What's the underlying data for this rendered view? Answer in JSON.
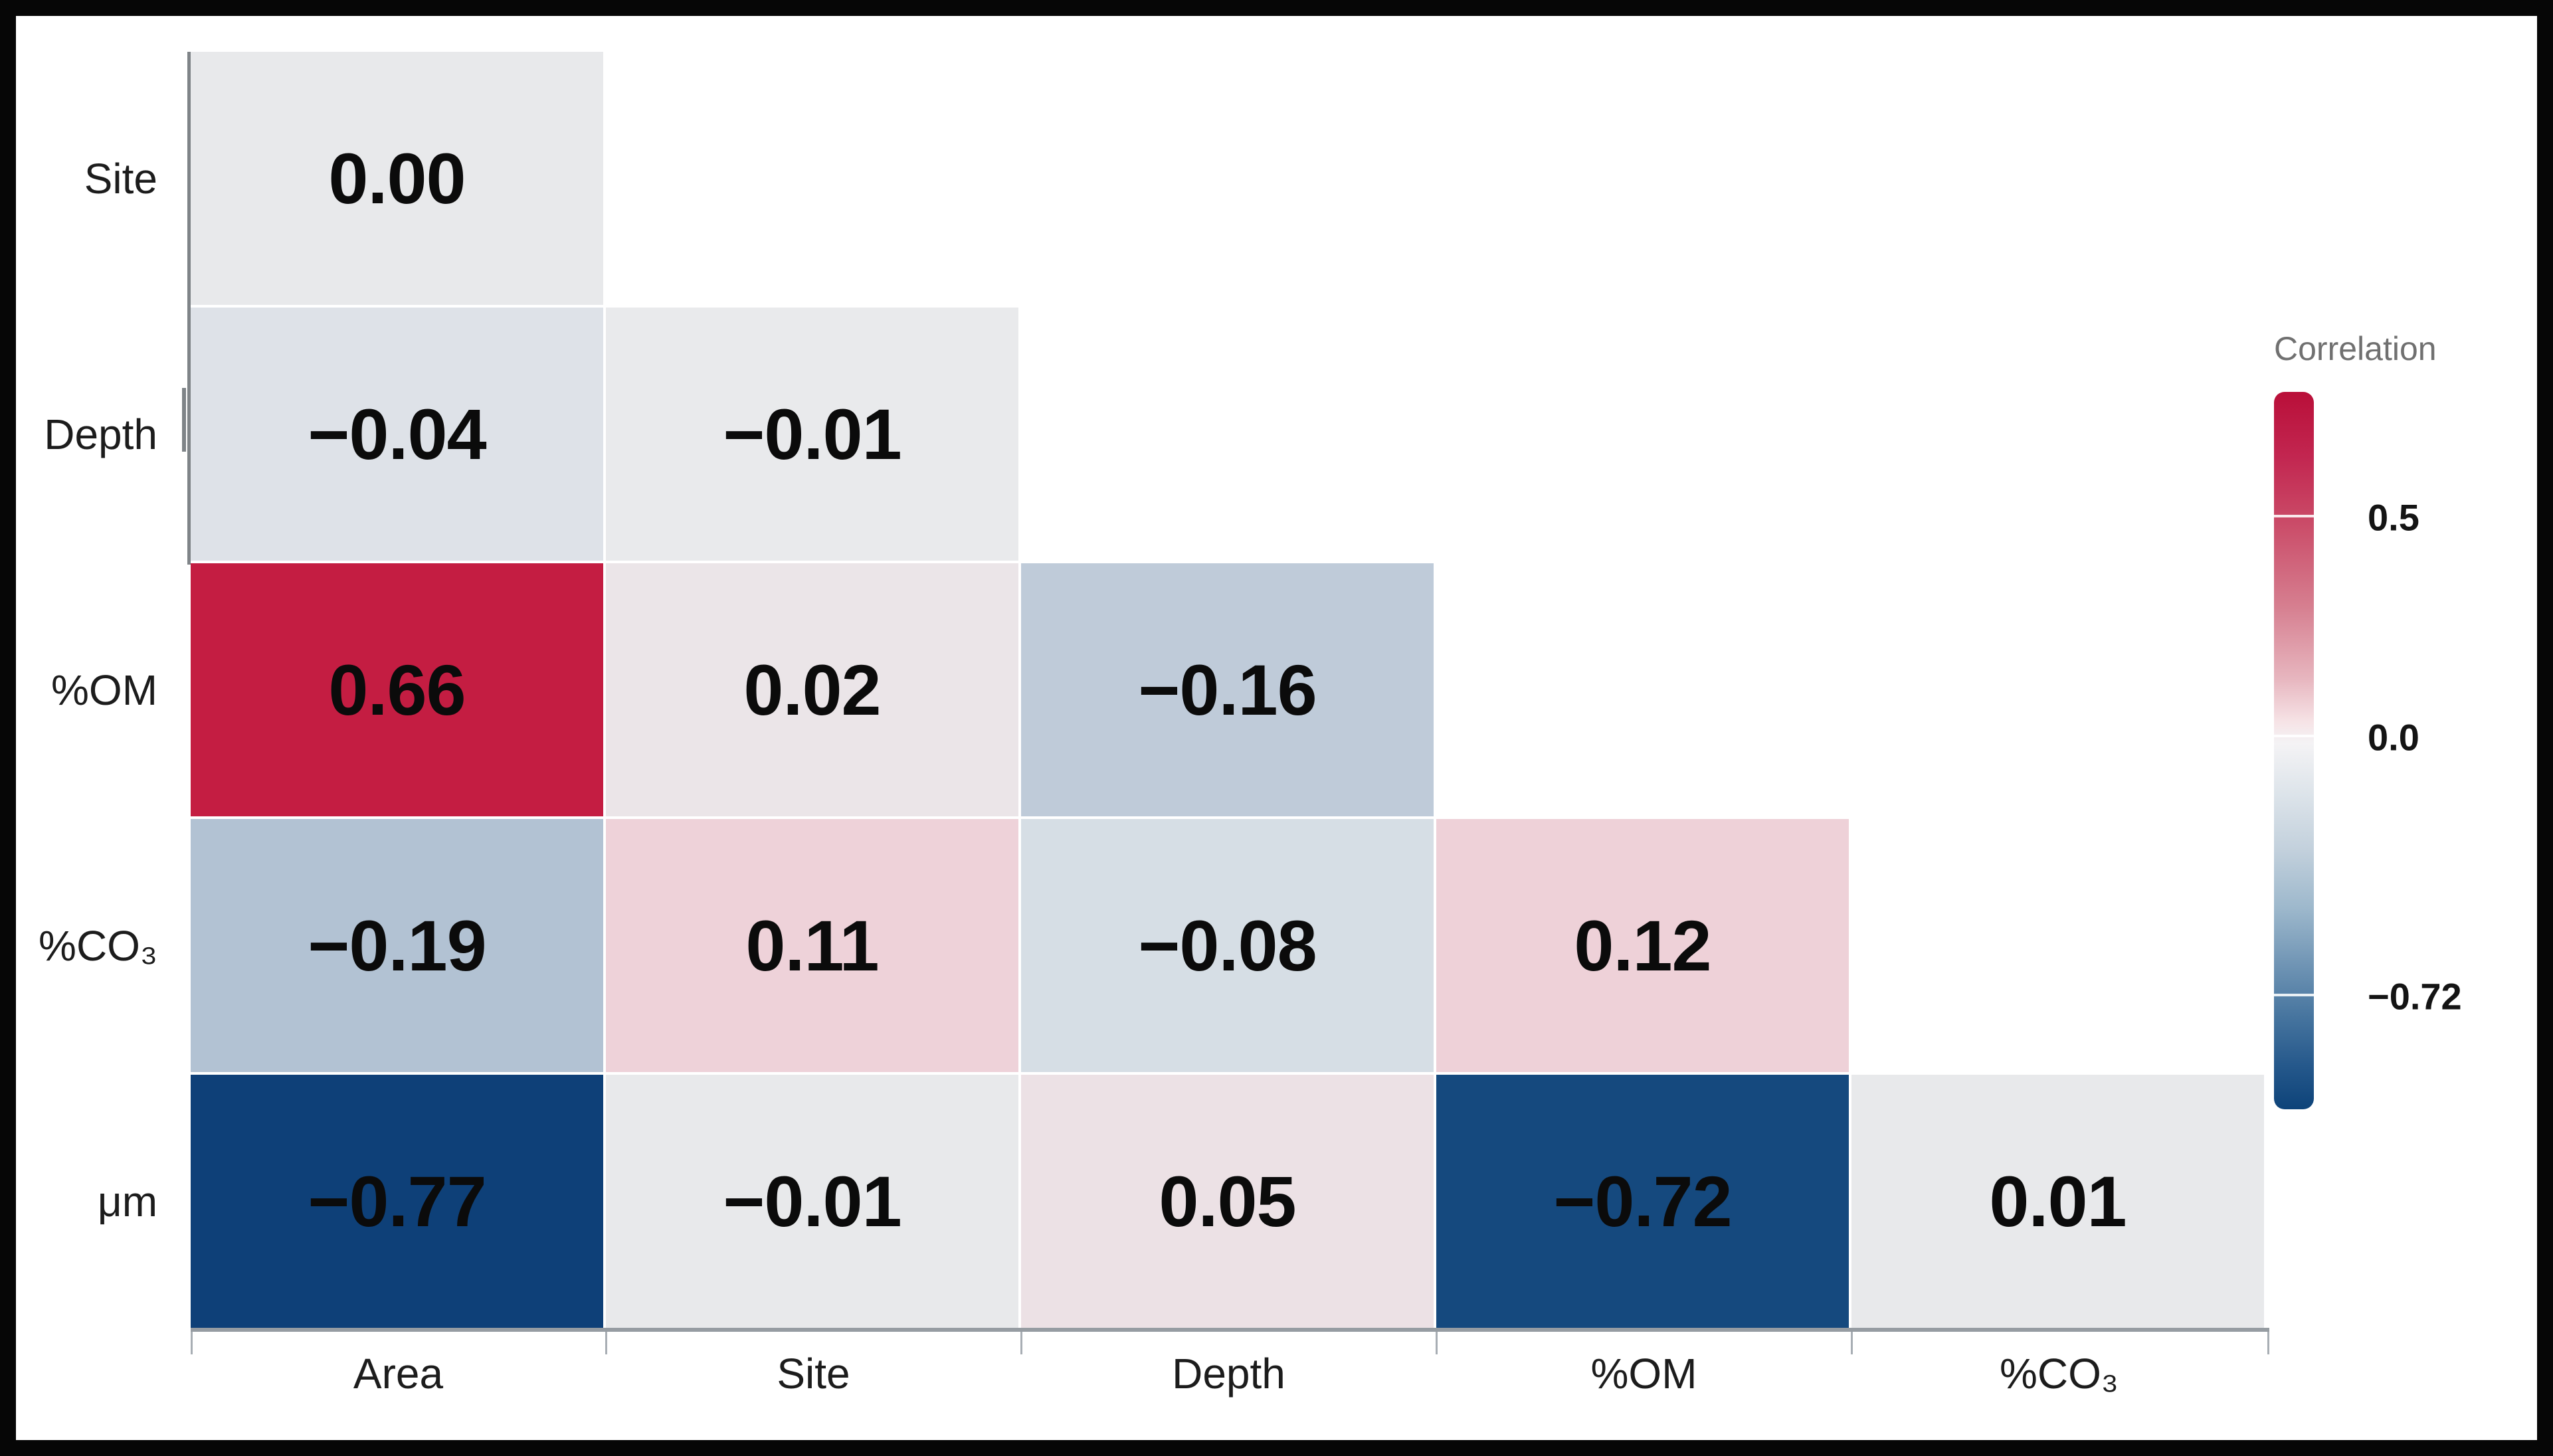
{
  "figure": {
    "background": "#ffffff",
    "frame_color": "#060606",
    "kind": "correlation heatmap, lower triangular matrix"
  },
  "chart_data": {
    "type": "heatmap",
    "subtype": "correlation-matrix-lower-triangle",
    "title": "",
    "xlabel": "",
    "ylabel": "",
    "grid": false,
    "x_axis": {
      "categories": [
        "Area",
        "Site",
        "Depth",
        "%OM",
        "%CO₃"
      ]
    },
    "y_axis": {
      "categories": [
        "Site",
        "Depth",
        "%OM",
        "%CO₃",
        "μm"
      ]
    },
    "matrix": [
      [
        0.0,
        null,
        null,
        null,
        null
      ],
      [
        -0.04,
        -0.01,
        null,
        null,
        null
      ],
      [
        0.66,
        0.02,
        -0.16,
        null,
        null
      ],
      [
        -0.19,
        0.11,
        -0.08,
        0.12,
        null
      ],
      [
        -0.77,
        -0.01,
        0.05,
        -0.72,
        0.01
      ]
    ],
    "rows": [
      {
        "label": "Site",
        "cells": [
          {
            "x": "Area",
            "label": "0.00",
            "value": 0.0,
            "color": "#e8e9eb"
          }
        ]
      },
      {
        "label": "Depth",
        "cells": [
          {
            "x": "Area",
            "label": "−0.04",
            "value": -0.04,
            "color": "#dee2e8"
          },
          {
            "x": "Site",
            "label": "−0.01",
            "value": -0.01,
            "color": "#e9eaec"
          }
        ]
      },
      {
        "label": "%OM",
        "cells": [
          {
            "x": "Area",
            "label": "0.66",
            "value": 0.66,
            "color": "#c41d42"
          },
          {
            "x": "Site",
            "label": "0.02",
            "value": 0.02,
            "color": "#ebe5e8"
          },
          {
            "x": "Depth",
            "label": "−0.16",
            "value": -0.16,
            "color": "#bfcbd9"
          }
        ]
      },
      {
        "label": "%CO₃",
        "cells": [
          {
            "x": "Area",
            "label": "−0.19",
            "value": -0.19,
            "color": "#b2c2d3"
          },
          {
            "x": "Site",
            "label": "0.11",
            "value": 0.11,
            "color": "#eed2d9"
          },
          {
            "x": "Depth",
            "label": "−0.08",
            "value": -0.08,
            "color": "#d6dee5"
          },
          {
            "x": "%OM",
            "label": "0.12",
            "value": 0.12,
            "color": "#eed1d8"
          }
        ]
      },
      {
        "label": "μm",
        "cells": [
          {
            "x": "Area",
            "label": "−0.77",
            "value": -0.77,
            "color": "#0e4078"
          },
          {
            "x": "Site",
            "label": "−0.01",
            "value": -0.01,
            "color": "#e8e9eb"
          },
          {
            "x": "Depth",
            "label": "0.05",
            "value": 0.05,
            "color": "#ece1e5"
          },
          {
            "x": "%OM",
            "label": "−0.72",
            "value": -0.72,
            "color": "#15497e"
          },
          {
            "x": "%CO₃",
            "label": "0.01",
            "value": 0.01,
            "color": "#e8e9eb"
          }
        ]
      }
    ],
    "colorbar": {
      "title": "Correlation",
      "title_color": "#707070",
      "legend_position": "right",
      "gradient_top_color": "#b90f39",
      "gradient_mid_color": "#f4f3f5",
      "gradient_bottom_color": "#0d4379",
      "ticks": [
        {
          "label": "0.5",
          "value": 0.5
        },
        {
          "label": "0.0",
          "value": 0.0
        },
        {
          "label": "−0.72",
          "value": -0.72
        }
      ]
    }
  }
}
